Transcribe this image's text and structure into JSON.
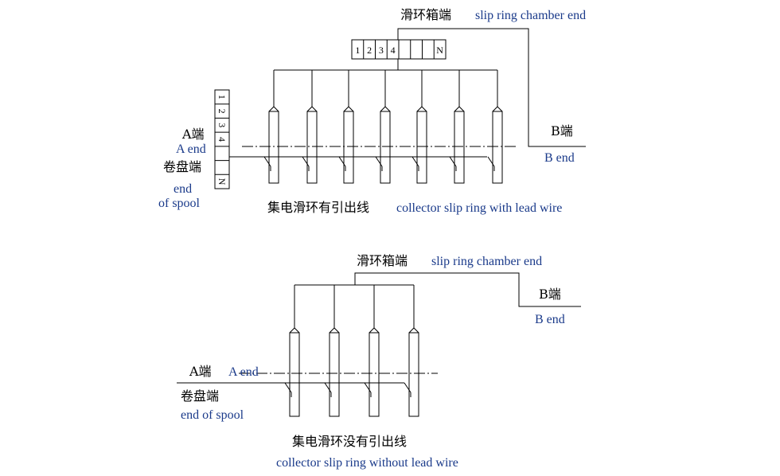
{
  "diagram_top": {
    "chamber_label_cn": "滑环箱端",
    "chamber_label_en": "slip ring chamber end",
    "terminal_cells": [
      "1",
      "2",
      "3",
      "4",
      "",
      "",
      "",
      "N"
    ],
    "side_cells": [
      "1",
      "2",
      "3",
      "4",
      "",
      "",
      "N"
    ],
    "a_end_cn": "A端",
    "a_end_en": "A end",
    "spool_cn": "卷盘端",
    "spool_en_line1": "end",
    "spool_en_line2": "of spool",
    "b_end_cn": "B端",
    "b_end_en": "B  end",
    "caption_cn": "集电滑环有引出线",
    "caption_en": "collector slip ring with  lead wire"
  },
  "diagram_bottom": {
    "chamber_label_cn": "滑环箱端",
    "chamber_label_en": "slip ring chamber end",
    "a_end_cn": "A端",
    "a_end_en": "A end",
    "spool_cn": "卷盘端",
    "spool_en": "end of spool",
    "b_end_cn": "B端",
    "b_end_en": "B  end",
    "caption_cn": "集电滑环没有引出线",
    "caption_en": "collector slip ring without lead wire"
  }
}
